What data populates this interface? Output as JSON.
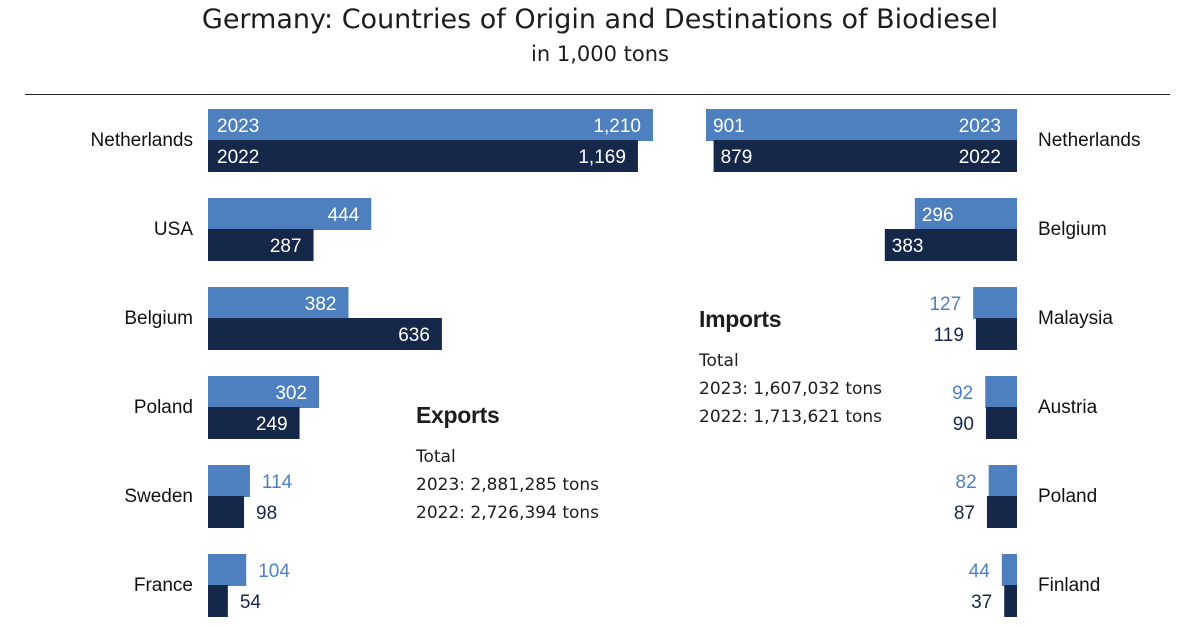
{
  "title": "Germany: Countries of Origin and Destinations of Biodiesel",
  "subtitle": "in 1,000 tons",
  "colors": {
    "year2023": "#4e80bf",
    "year2022": "#15284a",
    "label2023": "#4e80bf",
    "label2022": "#15284a"
  },
  "exports_summary": {
    "heading": "Exports",
    "total_label": "Total",
    "line_2023": "2023: 2,881,285 tons",
    "line_2022": "2022: 2,726,394 tons"
  },
  "imports_summary": {
    "heading": "Imports",
    "total_label": "Total",
    "line_2023": "2023: 1,607,032 tons",
    "line_2022": "2022: 1,713,621 tons"
  },
  "chart_data": [
    {
      "type": "bar",
      "orientation": "horizontal",
      "direction": "left-to-right",
      "title": "Exports",
      "unit": "1,000 tons",
      "categories": [
        "Netherlands",
        "USA",
        "Belgium",
        "Poland",
        "Sweden",
        "France"
      ],
      "series": [
        {
          "name": "2023",
          "values": [
            1210,
            444,
            382,
            302,
            114,
            104
          ],
          "value_labels": [
            "1,210",
            "444",
            "382",
            "302",
            "114",
            "104"
          ]
        },
        {
          "name": "2022",
          "values": [
            1169,
            287,
            636,
            249,
            98,
            54
          ],
          "value_labels": [
            "1,169",
            "287",
            "636",
            "249",
            "98",
            "54"
          ]
        }
      ]
    },
    {
      "type": "bar",
      "orientation": "horizontal",
      "direction": "right-to-left",
      "title": "Imports",
      "unit": "1,000 tons",
      "categories": [
        "Netherlands",
        "Belgium",
        "Malaysia",
        "Austria",
        "Poland",
        "Finland"
      ],
      "series": [
        {
          "name": "2023",
          "values": [
            901,
            296,
            127,
            92,
            82,
            44
          ],
          "value_labels": [
            "901",
            "296",
            "127",
            "92",
            "82",
            "44"
          ]
        },
        {
          "name": "2022",
          "values": [
            879,
            383,
            119,
            90,
            87,
            37
          ],
          "value_labels": [
            "879",
            "383",
            "119",
            "90",
            "87",
            "37"
          ]
        }
      ]
    }
  ]
}
